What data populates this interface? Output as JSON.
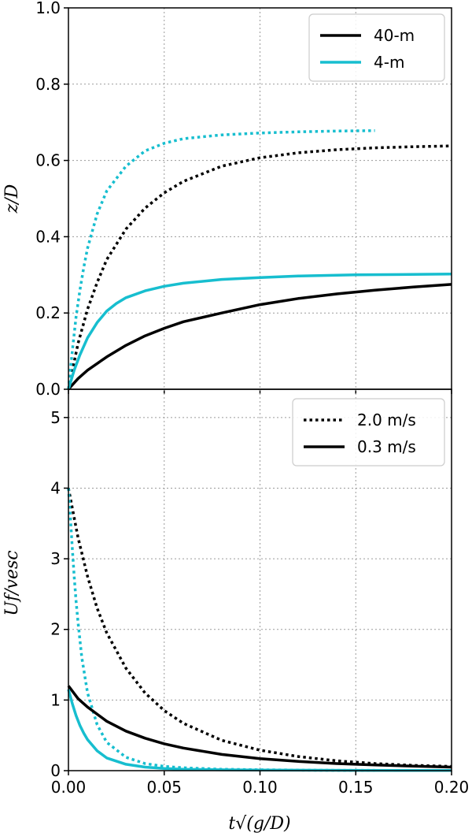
{
  "chart_data": [
    {
      "type": "line",
      "panel": "top",
      "ylabel": "z/D",
      "xlabel": "",
      "xlim": [
        0,
        0.2
      ],
      "ylim": [
        0,
        1.0
      ],
      "yticks": [
        "0.0",
        "0.2",
        "0.4",
        "0.6",
        "0.8",
        "1.0"
      ],
      "grid": true,
      "legend": {
        "placement": "top-right",
        "entries": [
          {
            "label": "40-m",
            "color": "#000000",
            "style": "solid"
          },
          {
            "label": "4-m",
            "color": "#17becf",
            "style": "solid"
          }
        ]
      },
      "series": [
        {
          "name": "40-m 2.0 m/s",
          "color": "#000000",
          "style": "dotted",
          "x": [
            0,
            0.005,
            0.01,
            0.015,
            0.02,
            0.03,
            0.04,
            0.05,
            0.06,
            0.08,
            0.1,
            0.12,
            0.14,
            0.16,
            0.18,
            0.2
          ],
          "y": [
            0,
            0.12,
            0.21,
            0.28,
            0.34,
            0.42,
            0.475,
            0.515,
            0.545,
            0.585,
            0.607,
            0.62,
            0.628,
            0.633,
            0.636,
            0.638
          ]
        },
        {
          "name": "4-m 2.0 m/s",
          "color": "#17becf",
          "style": "dotted",
          "x": [
            0,
            0.002,
            0.004,
            0.006,
            0.008,
            0.01,
            0.015,
            0.02,
            0.03,
            0.04,
            0.05,
            0.06,
            0.08,
            0.1,
            0.12,
            0.14,
            0.16
          ],
          "y": [
            0,
            0.1,
            0.19,
            0.26,
            0.32,
            0.37,
            0.46,
            0.52,
            0.585,
            0.625,
            0.645,
            0.657,
            0.667,
            0.672,
            0.675,
            0.677,
            0.678
          ]
        },
        {
          "name": "40-m 0.3 m/s",
          "color": "#000000",
          "style": "solid",
          "x": [
            0,
            0.005,
            0.01,
            0.02,
            0.03,
            0.04,
            0.05,
            0.06,
            0.08,
            0.1,
            0.12,
            0.14,
            0.16,
            0.18,
            0.2
          ],
          "y": [
            0,
            0.028,
            0.05,
            0.085,
            0.115,
            0.14,
            0.16,
            0.177,
            0.2,
            0.222,
            0.238,
            0.25,
            0.26,
            0.268,
            0.275
          ]
        },
        {
          "name": "4-m 0.3 m/s",
          "color": "#17becf",
          "style": "solid",
          "x": [
            0,
            0.003,
            0.006,
            0.01,
            0.015,
            0.02,
            0.025,
            0.03,
            0.04,
            0.05,
            0.06,
            0.08,
            0.1,
            0.12,
            0.15,
            0.2
          ],
          "y": [
            0,
            0.05,
            0.09,
            0.135,
            0.175,
            0.205,
            0.225,
            0.24,
            0.258,
            0.27,
            0.278,
            0.288,
            0.293,
            0.297,
            0.3,
            0.302
          ]
        }
      ]
    },
    {
      "type": "line",
      "panel": "bottom",
      "ylabel": "Uf/vesc",
      "xlabel": "t√(g/D)",
      "xlim": [
        0,
        0.2
      ],
      "ylim": [
        0,
        5.4
      ],
      "xticks": [
        "0.00",
        "0.05",
        "0.10",
        "0.15",
        "0.20"
      ],
      "yticks": [
        "0",
        "1",
        "2",
        "3",
        "4",
        "5"
      ],
      "grid": true,
      "legend": {
        "placement": "top-right",
        "entries": [
          {
            "label": "2.0 m/s",
            "color": "#000000",
            "style": "dotted"
          },
          {
            "label": "0.3 m/s",
            "color": "#000000",
            "style": "solid"
          }
        ]
      },
      "series": [
        {
          "name": "40-m 2.0 m/s",
          "color": "#000000",
          "style": "dotted",
          "x": [
            0,
            0.005,
            0.01,
            0.015,
            0.02,
            0.03,
            0.04,
            0.05,
            0.06,
            0.08,
            0.1,
            0.12,
            0.14,
            0.16,
            0.18,
            0.2
          ],
          "y": [
            4.0,
            3.3,
            2.75,
            2.3,
            1.95,
            1.45,
            1.1,
            0.85,
            0.67,
            0.43,
            0.29,
            0.2,
            0.14,
            0.1,
            0.075,
            0.06
          ]
        },
        {
          "name": "4-m 2.0 m/s",
          "color": "#17becf",
          "style": "dotted",
          "x": [
            0,
            0.001,
            0.002,
            0.003,
            0.004,
            0.005,
            0.007,
            0.01,
            0.015,
            0.02,
            0.03,
            0.04,
            0.05,
            0.06,
            0.08,
            0.1,
            0.12,
            0.14,
            0.16
          ],
          "y": [
            4.0,
            3.6,
            3.15,
            2.75,
            2.4,
            2.1,
            1.6,
            1.1,
            0.65,
            0.4,
            0.19,
            0.1,
            0.06,
            0.04,
            0.02,
            0.012,
            0.008,
            0.005,
            0.004
          ]
        },
        {
          "name": "40-m 0.3 m/s",
          "color": "#000000",
          "style": "solid",
          "x": [
            0,
            0.005,
            0.01,
            0.02,
            0.03,
            0.04,
            0.05,
            0.06,
            0.08,
            0.1,
            0.12,
            0.14,
            0.16,
            0.18,
            0.2
          ],
          "y": [
            1.2,
            1.02,
            0.9,
            0.7,
            0.56,
            0.46,
            0.38,
            0.32,
            0.23,
            0.17,
            0.13,
            0.1,
            0.08,
            0.065,
            0.05
          ]
        },
        {
          "name": "4-m 0.3 m/s",
          "color": "#17becf",
          "style": "solid",
          "x": [
            0,
            0.002,
            0.004,
            0.006,
            0.008,
            0.01,
            0.015,
            0.02,
            0.03,
            0.04,
            0.05,
            0.06,
            0.08,
            0.1,
            0.15,
            0.2
          ],
          "y": [
            1.15,
            0.95,
            0.78,
            0.64,
            0.53,
            0.44,
            0.28,
            0.18,
            0.09,
            0.05,
            0.03,
            0.02,
            0.012,
            0.008,
            0.004,
            0.002
          ]
        }
      ]
    }
  ]
}
